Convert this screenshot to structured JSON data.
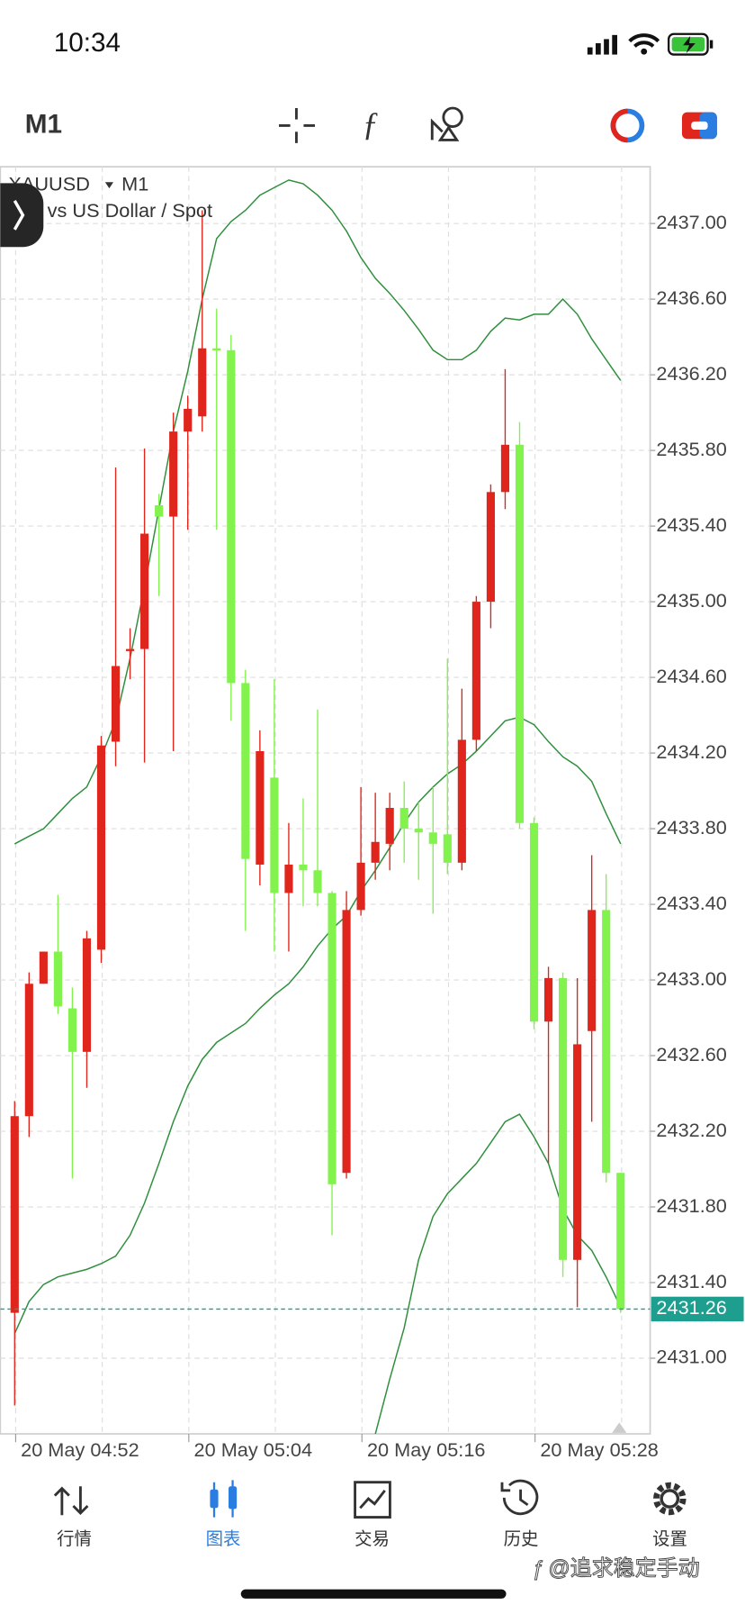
{
  "status_bar": {
    "time": "10:34"
  },
  "toolbar": {
    "timeframe": "M1"
  },
  "chart_header": {
    "symbol": "XAUUSD",
    "timeframe": "M1",
    "description": "d vs US Dollar / Spot"
  },
  "chart_data": {
    "type": "candlestick",
    "categories": [
      "20 May 04:52",
      null,
      null,
      null,
      null,
      null,
      null,
      null,
      null,
      null,
      null,
      null,
      "20 May 05:04",
      null,
      null,
      null,
      null,
      null,
      null,
      null,
      null,
      null,
      null,
      null,
      "20 May 05:16",
      null,
      null,
      null,
      null,
      null,
      null,
      null,
      null,
      null,
      null,
      null,
      "20 May 05:28",
      null,
      null,
      null,
      null,
      null,
      null
    ],
    "open": [
      2431.24,
      2432.28,
      2432.98,
      2433.15,
      2432.85,
      2432.62,
      2433.16,
      2434.26,
      2434.74,
      2434.75,
      2435.51,
      2435.45,
      2435.9,
      2435.98,
      2436.34,
      2436.33,
      2434.57,
      2433.61,
      2434.07,
      2433.46,
      2433.61,
      2433.58,
      2433.46,
      2431.98,
      2433.37,
      2433.62,
      2433.72,
      2433.91,
      2433.8,
      2433.78,
      2433.77,
      2433.62,
      2434.27,
      2435.0,
      2435.58,
      2435.83,
      2433.83,
      2432.78,
      2433.01,
      2431.52,
      2432.73,
      2433.37,
      2431.98
    ],
    "high": [
      2432.36,
      2433.04,
      2433.15,
      2433.45,
      2432.96,
      2433.26,
      2434.29,
      2435.71,
      2434.86,
      2435.81,
      2435.57,
      2436.0,
      2436.09,
      2437.07,
      2436.55,
      2436.41,
      2434.64,
      2434.32,
      2434.59,
      2433.83,
      2433.96,
      2434.43,
      2433.47,
      2433.47,
      2434.02,
      2433.99,
      2433.99,
      2434.05,
      2433.94,
      2434.02,
      2434.7,
      2434.54,
      2435.03,
      2435.62,
      2436.23,
      2435.95,
      2433.86,
      2433.07,
      2433.04,
      2433.01,
      2433.66,
      2433.56,
      2431.98
    ],
    "low": [
      2430.75,
      2432.17,
      2432.98,
      2432.82,
      2431.95,
      2432.43,
      2433.09,
      2434.13,
      2434.59,
      2434.15,
      2435.03,
      2434.21,
      2435.38,
      2435.9,
      2435.38,
      2434.37,
      2433.26,
      2433.5,
      2433.15,
      2433.15,
      2433.39,
      2433.39,
      2431.65,
      2431.95,
      2433.34,
      2433.53,
      2433.58,
      2433.62,
      2433.53,
      2433.35,
      2433.56,
      2433.58,
      2434.21,
      2434.86,
      2435.49,
      2433.8,
      2432.74,
      2432.03,
      2431.43,
      2431.27,
      2432.25,
      2431.93,
      2431.24
    ],
    "close": [
      2432.28,
      2432.98,
      2433.15,
      2432.86,
      2432.62,
      2433.22,
      2434.24,
      2434.66,
      2434.75,
      2435.36,
      2435.45,
      2435.9,
      2436.02,
      2436.34,
      2436.33,
      2434.57,
      2433.64,
      2434.21,
      2433.46,
      2433.61,
      2433.58,
      2433.46,
      2431.92,
      2433.37,
      2433.62,
      2433.73,
      2433.91,
      2433.8,
      2433.78,
      2433.72,
      2433.62,
      2434.27,
      2435.0,
      2435.58,
      2435.83,
      2433.83,
      2432.78,
      2433.01,
      2431.52,
      2432.66,
      2433.37,
      2431.98,
      2431.26
    ],
    "up_color": "#e0261c",
    "down_color": "#82f24c",
    "indicators": [
      {
        "color": "#2f8f3d",
        "values": [
          2433.72,
          2433.76,
          2433.8,
          2433.88,
          2433.96,
          2434.02,
          2434.18,
          2434.37,
          2434.7,
          2435.08,
          2435.49,
          2435.9,
          2436.22,
          2436.6,
          2436.92,
          2437.01,
          2437.07,
          2437.15,
          2437.19,
          2437.23,
          2437.21,
          2437.15,
          2437.07,
          2436.96,
          2436.82,
          2436.71,
          2436.63,
          2436.54,
          2436.44,
          2436.33,
          2436.28,
          2436.28,
          2436.33,
          2436.43,
          2436.5,
          2436.49,
          2436.52,
          2436.52,
          2436.6,
          2436.52,
          2436.39,
          2436.28,
          2436.17
        ]
      },
      {
        "color": "#2f8f3d",
        "values": [
          2431.13,
          2431.3,
          2431.39,
          2431.43,
          2431.45,
          2431.47,
          2431.5,
          2431.54,
          2431.65,
          2431.82,
          2432.03,
          2432.25,
          2432.44,
          2432.58,
          2432.67,
          2432.72,
          2432.77,
          2432.85,
          2432.92,
          2432.98,
          2433.07,
          2433.18,
          2433.27,
          2433.34,
          2433.47,
          2433.58,
          2433.7,
          2433.83,
          2433.94,
          2434.02,
          2434.09,
          2434.14,
          2434.21,
          2434.29,
          2434.37,
          2434.39,
          2434.35,
          2434.26,
          2434.18,
          2434.13,
          2434.05,
          2433.88,
          2433.72
        ]
      },
      {
        "color": "#2f8f3d",
        "values": [
          null,
          null,
          null,
          null,
          null,
          null,
          null,
          null,
          null,
          null,
          null,
          null,
          null,
          null,
          null,
          null,
          null,
          null,
          null,
          null,
          null,
          null,
          null,
          null,
          null,
          2430.6,
          2430.89,
          2431.16,
          2431.52,
          2431.75,
          2431.87,
          2431.95,
          2432.03,
          2432.14,
          2432.25,
          2432.29,
          2432.17,
          2432.03,
          2431.79,
          2431.65,
          2431.57,
          2431.43,
          2431.27
        ]
      }
    ],
    "current_price": 2431.26,
    "current_price_color": "#1e9e8e",
    "ylim": [
      2430.6,
      2437.3
    ],
    "yticks": [
      {
        "value": 2431.0,
        "label": "2431.00"
      },
      {
        "value": 2431.4,
        "label": "2431.40"
      },
      {
        "value": 2431.8,
        "label": "2431.80"
      },
      {
        "value": 2432.2,
        "label": "2432.20"
      },
      {
        "value": 2432.6,
        "label": "2432.60"
      },
      {
        "value": 2433.0,
        "label": "2433.00"
      },
      {
        "value": 2433.4,
        "label": "2433.40"
      },
      {
        "value": 2433.8,
        "label": "2433.80"
      },
      {
        "value": 2434.2,
        "label": "2434.20"
      },
      {
        "value": 2434.6,
        "label": "2434.60"
      },
      {
        "value": 2435.0,
        "label": "2435.00"
      },
      {
        "value": 2435.4,
        "label": "2435.40"
      },
      {
        "value": 2435.8,
        "label": "2435.80"
      },
      {
        "value": 2436.2,
        "label": "2436.20"
      },
      {
        "value": 2436.6,
        "label": "2436.60"
      },
      {
        "value": 2437.0,
        "label": "2437.00"
      }
    ],
    "grid": true
  },
  "tab_bar": {
    "tabs": [
      "行情",
      "图表",
      "交易",
      "历史",
      "设置"
    ],
    "active": 1
  },
  "watermark": "@追求稳定手动"
}
